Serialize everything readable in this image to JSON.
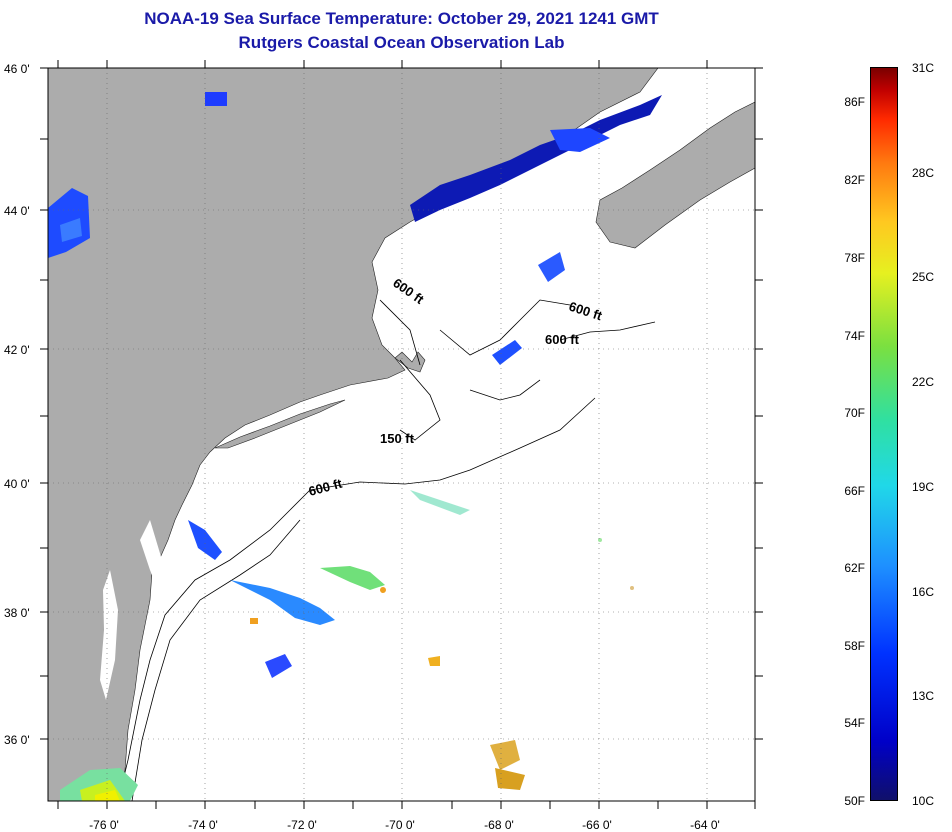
{
  "title": "NOAA-19 Sea Surface Temperature:  October 29, 2021 1241 GMT",
  "subtitle": "Rutgers Coastal Ocean Observation Lab",
  "latitude_labels": [
    "46 0'",
    "44 0'",
    "42 0'",
    "40 0'",
    "38 0'",
    "36 0'"
  ],
  "longitude_labels": [
    "-76 0'",
    "-74 0'",
    "-72 0'",
    "-70 0'",
    "-68 0'",
    "-66 0'",
    "-64 0'"
  ],
  "contour_labels": [
    "600 ft",
    "600 ft",
    "600 ft",
    "150 ft",
    "600 ft"
  ],
  "colorbar": {
    "fahrenheit": [
      "86F",
      "82F",
      "78F",
      "74F",
      "70F",
      "66F",
      "62F",
      "58F",
      "54F",
      "50F"
    ],
    "celsius": [
      "31C",
      "28C",
      "25C",
      "22C",
      "19C",
      "16C",
      "13C",
      "10C"
    ]
  },
  "colors": {
    "land": "#acacac",
    "ocean_no_data": "#ffffff",
    "title": "#1a1aa8"
  }
}
